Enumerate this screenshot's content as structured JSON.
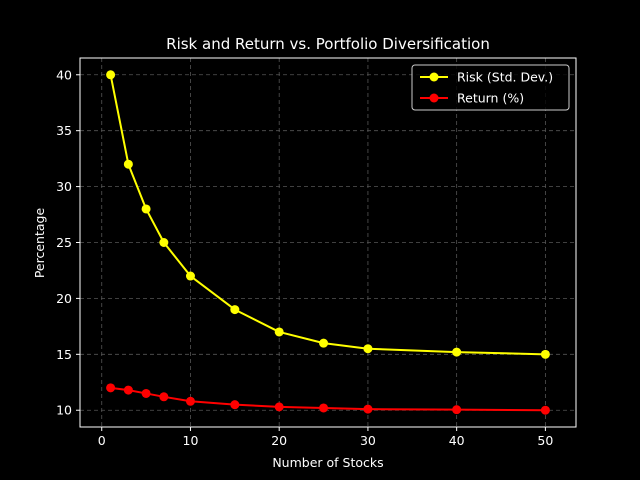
{
  "chart_data": {
    "type": "line",
    "title": "Risk and Return vs. Portfolio Diversification",
    "xlabel": "Number of Stocks",
    "ylabel": "Percentage",
    "x": [
      1,
      3,
      5,
      7,
      10,
      15,
      20,
      25,
      30,
      40,
      50
    ],
    "series": [
      {
        "name": "Risk (Std. Dev.)",
        "color": "#ffff00",
        "values": [
          40,
          32,
          28,
          25,
          22,
          19,
          17,
          16,
          15.5,
          15.2,
          15
        ]
      },
      {
        "name": "Return (%)",
        "color": "#ff0000",
        "values": [
          12,
          11.8,
          11.5,
          11.2,
          10.8,
          10.5,
          10.3,
          10.2,
          10.1,
          10.05,
          10.0
        ]
      }
    ],
    "xlim": [
      -2.45,
      53.45
    ],
    "ylim": [
      8.5,
      41.5
    ],
    "xticks": [
      0,
      10,
      20,
      30,
      40,
      50
    ],
    "yticks": [
      10,
      15,
      20,
      25,
      30,
      35,
      40
    ],
    "grid": true,
    "legend_position": "top-right"
  }
}
